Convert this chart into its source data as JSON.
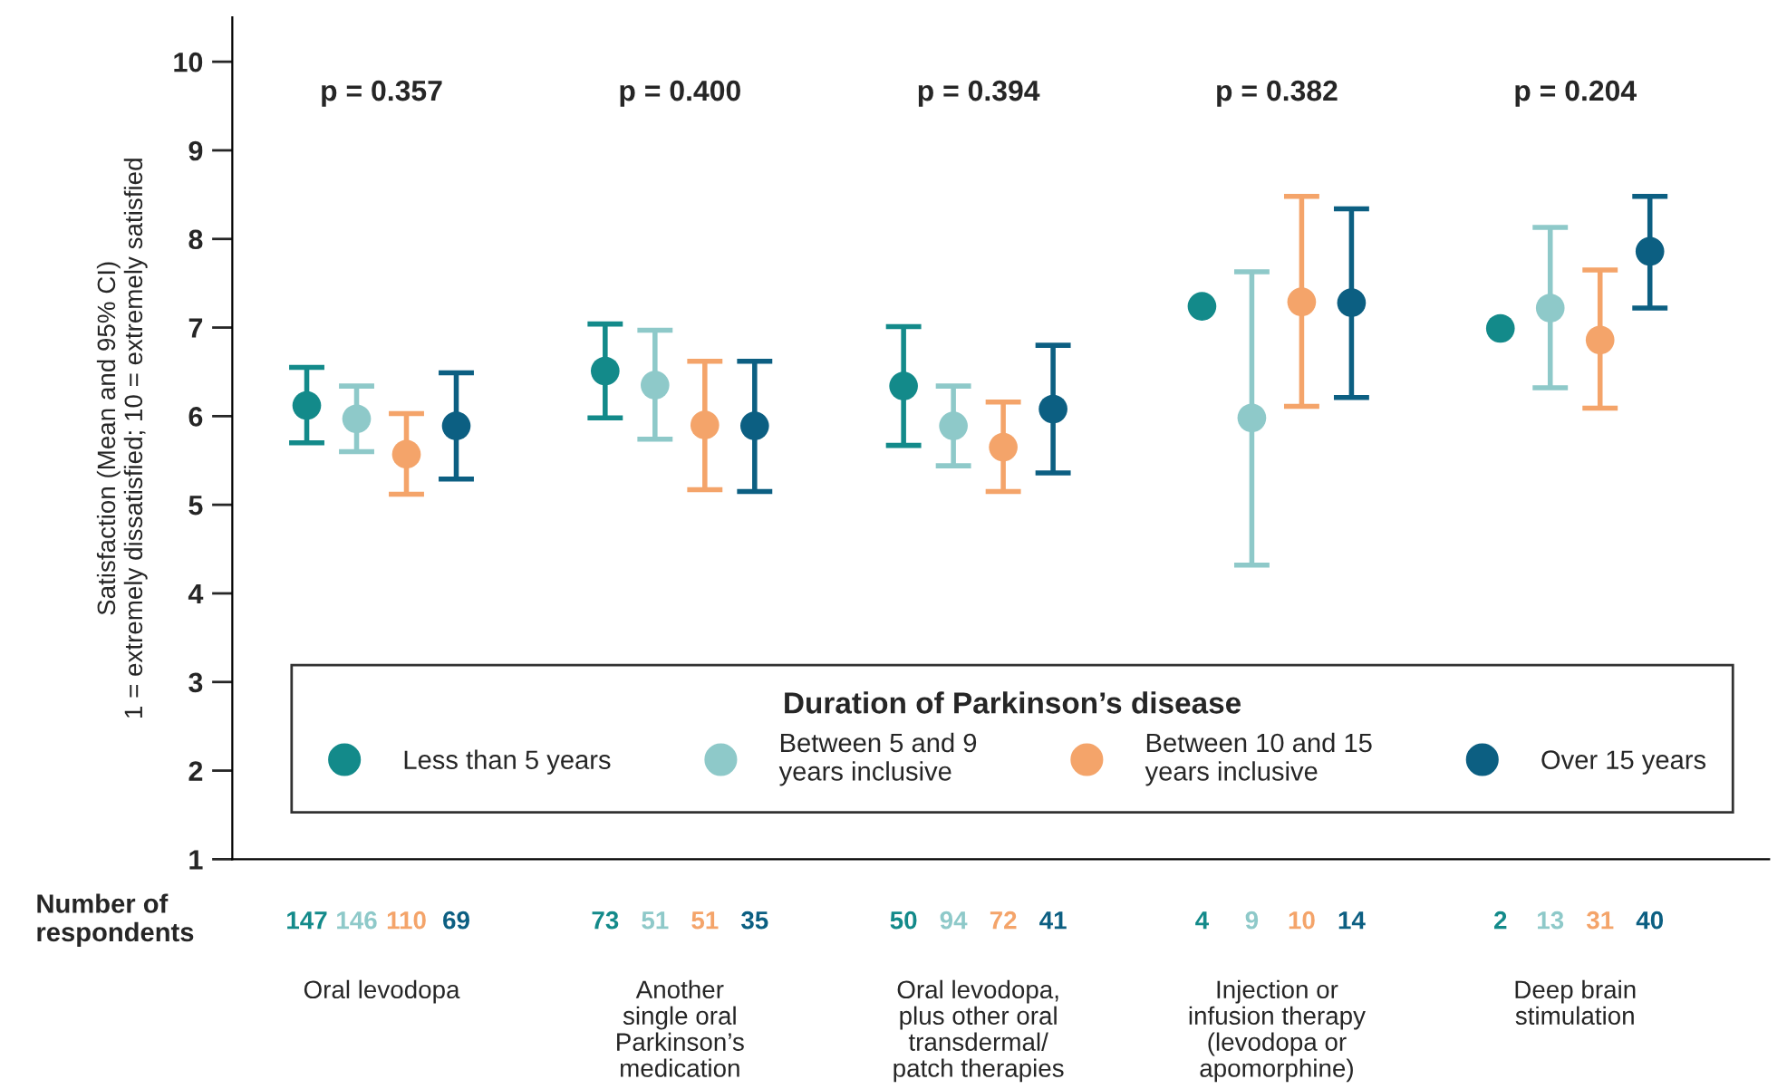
{
  "chart_data": {
    "type": "scatter",
    "ylabel": "Satisfaction (Mean and 95% CI)\n1 = extremely dissatisfied; 10 = extremely satisfied",
    "categories": [
      "Oral levodopa",
      "Another\nsingle oral\nParkinson’s\nmedication",
      "Oral levodopa,\nplus other oral\ntransdermal/\npatch therapies",
      "Injection or\ninfusion therapy\n(levodopa or\napomorphine)",
      "Deep brain\nstimulation"
    ],
    "series": [
      {
        "name": "Less than 5 years",
        "color": "#138a8a",
        "values": [
          6.12,
          6.51,
          6.34,
          7.24,
          6.99
        ],
        "errors": [
          [
            5.7,
            6.55
          ],
          [
            5.98,
            7.04
          ],
          [
            5.67,
            7.01
          ],
          null,
          null
        ]
      },
      {
        "name": "Between 5 and 9\nyears inclusive",
        "color": "#8ec9c9",
        "values": [
          5.97,
          6.35,
          5.89,
          5.98,
          7.22
        ],
        "errors": [
          [
            5.6,
            6.34
          ],
          [
            5.74,
            6.97
          ],
          [
            5.44,
            6.34
          ],
          [
            4.32,
            7.63
          ],
          [
            6.32,
            8.13
          ]
        ]
      },
      {
        "name": "Between 10 and 15\nyears inclusive",
        "color": "#f4a46a",
        "values": [
          5.57,
          5.9,
          5.65,
          7.29,
          6.86
        ],
        "errors": [
          [
            5.12,
            6.03
          ],
          [
            5.17,
            6.62
          ],
          [
            5.15,
            6.16
          ],
          [
            6.11,
            8.48
          ],
          [
            6.09,
            7.65
          ]
        ]
      },
      {
        "name": "Over 15 years",
        "color": "#0c5f82",
        "values": [
          5.89,
          5.89,
          6.08,
          7.28,
          7.86
        ],
        "errors": [
          [
            5.29,
            6.49
          ],
          [
            5.15,
            6.62
          ],
          [
            5.36,
            6.8
          ],
          [
            6.21,
            8.34
          ],
          [
            7.22,
            8.48
          ]
        ]
      }
    ],
    "legend_title": "Duration of Parkinson’s disease",
    "legend": "bottom",
    "marker": "circle",
    "grid": false,
    "ylim": [
      1,
      10.5
    ],
    "yticks": [
      1,
      2,
      3,
      4,
      5,
      6,
      7,
      8,
      9,
      10
    ],
    "annotations": [
      "Number of\nrespondents",
      "p = 0.357",
      "p = 0.400",
      "p = 0.394",
      "p = 0.382",
      "p = 0.204",
      "147",
      "146",
      "110",
      "69",
      "73",
      "51",
      "51",
      "35",
      "50",
      "94",
      "72",
      "41",
      "4",
      "9",
      "10",
      "14",
      "2",
      "13",
      "31",
      "40"
    ]
  }
}
